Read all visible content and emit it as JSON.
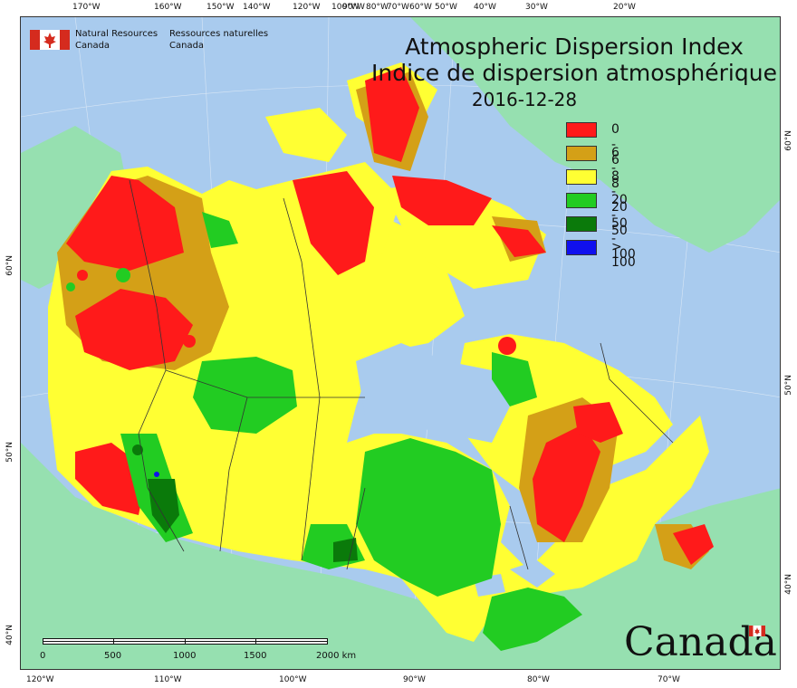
{
  "title": {
    "line1": "Atmospheric Dispersion Index",
    "line2": "Indice de dispersion atmosphérique",
    "date": "2016-12-28"
  },
  "agency": {
    "en_line1": "Natural Resources",
    "en_line2": "Canada",
    "fr_line1": "Ressources naturelles",
    "fr_line2": "Canada"
  },
  "legend": [
    {
      "label": "0 - 6",
      "color": "#ff1a1a"
    },
    {
      "label": "6 - 8",
      "color": "#d4a017"
    },
    {
      "label": "8 - 20",
      "color": "#ffff33"
    },
    {
      "label": "20 - 50",
      "color": "#22cc22"
    },
    {
      "label": "50 - 100",
      "color": "#0a7a0a"
    },
    {
      "label": "> 100",
      "color": "#1010ee"
    }
  ],
  "top_ticks": [
    "170°W",
    "160°W",
    "150°W",
    "140°W",
    "120°W",
    "100°W",
    "90°W",
    "80°W",
    "70°W",
    "60°W",
    "50°W",
    "40°W",
    "30°W",
    "20°W"
  ],
  "bottom_ticks": [
    "120°W",
    "110°W",
    "100°W",
    "90°W",
    "80°W",
    "70°W"
  ],
  "left_ticks": [
    "60°N",
    "50°N",
    "40°N"
  ],
  "right_ticks": [
    "60°N",
    "50°N",
    "40°N"
  ],
  "scale": {
    "labels": [
      "0",
      "500",
      "1000",
      "1500",
      "2000 km"
    ]
  },
  "wordmark": "Canada",
  "colors": {
    "ocean": "#a9cbee",
    "foreign_land": "#96e0b0",
    "border": "#333333"
  }
}
